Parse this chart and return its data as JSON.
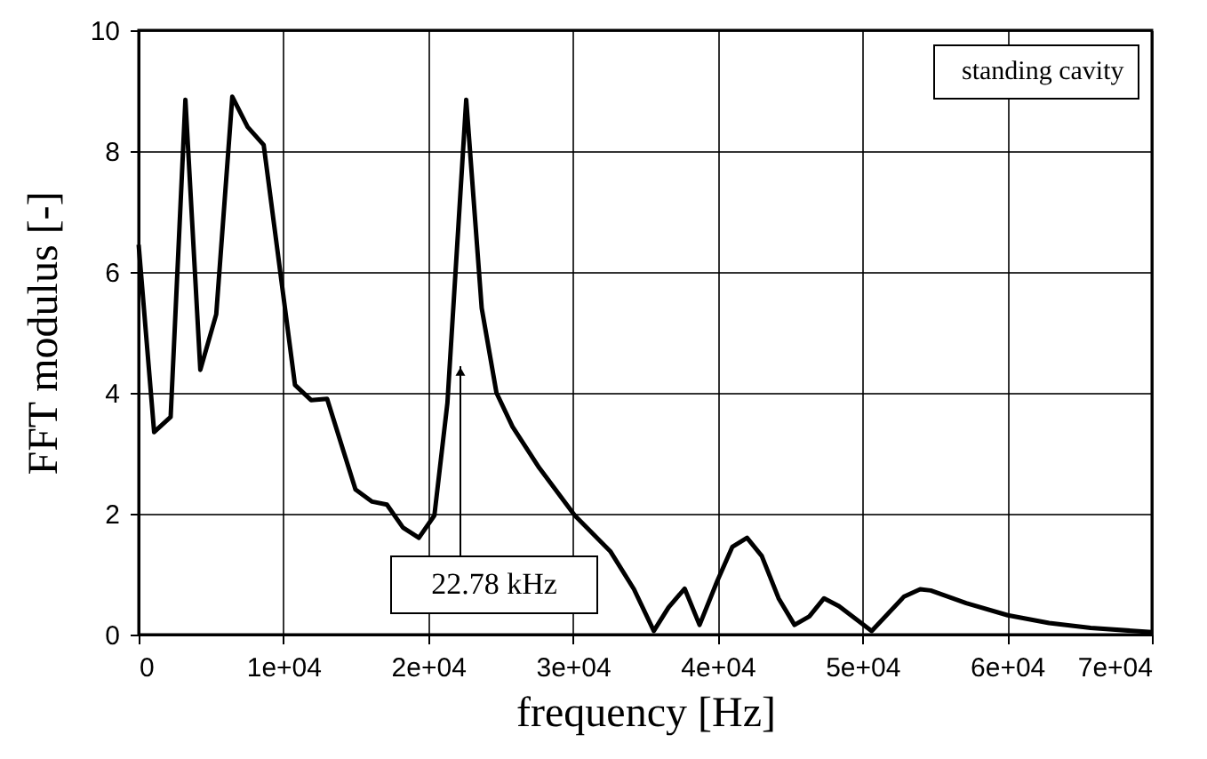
{
  "chart_data": {
    "type": "line",
    "xlabel": "frequency [Hz]",
    "ylabel": "FFT modulus [-]",
    "x": [
      0,
      1070,
      2210,
      3230,
      4260,
      5360,
      6470,
      7530,
      8640,
      10800,
      11910,
      13020,
      14980,
      16130,
      17150,
      18260,
      19360,
      20430,
      21330,
      22630,
      23700,
      24720,
      25830,
      27670,
      30130,
      32580,
      34220,
      35590,
      36610,
      37720,
      38750,
      39980,
      41010,
      42030,
      43050,
      44210,
      45310,
      46330,
      47350,
      48380,
      50640,
      52880,
      53990,
      54720,
      57170,
      60040,
      62900,
      65770,
      70000
    ],
    "series": [
      {
        "name": "standing cavity",
        "color": "#000000",
        "values": [
          6.45,
          3.35,
          3.6,
          8.85,
          4.38,
          5.3,
          8.9,
          8.4,
          8.1,
          4.13,
          3.88,
          3.9,
          2.4,
          2.2,
          2.15,
          1.77,
          1.6,
          1.97,
          3.83,
          8.85,
          5.4,
          4.0,
          3.44,
          2.76,
          1.97,
          1.38,
          0.75,
          0.06,
          0.45,
          0.76,
          0.16,
          0.89,
          1.45,
          1.6,
          1.3,
          0.6,
          0.16,
          0.3,
          0.6,
          0.47,
          0.06,
          0.63,
          0.75,
          0.73,
          0.52,
          0.32,
          0.19,
          0.11,
          0.04
        ]
      }
    ],
    "xlim": [
      0,
      70000
    ],
    "xticks": [
      0,
      {
        "value": 10000,
        "label": "1e+04"
      },
      {
        "value": 20000,
        "label": "2e+04"
      },
      {
        "value": 30000,
        "label": "3e+04"
      },
      {
        "value": 40000,
        "label": "4e+04"
      },
      {
        "value": 50000,
        "label": "5e+04"
      },
      {
        "value": 60000,
        "label": "6e+04"
      },
      {
        "value": 70000,
        "label": "7e+04"
      }
    ],
    "ylim": [
      0,
      10
    ],
    "yticks": [
      0,
      2,
      4,
      6,
      8,
      10
    ],
    "annotations": [
      "22.78 kHz"
    ],
    "grid": true,
    "legend": "top right",
    "marker": "none",
    "line_style": "solid"
  }
}
